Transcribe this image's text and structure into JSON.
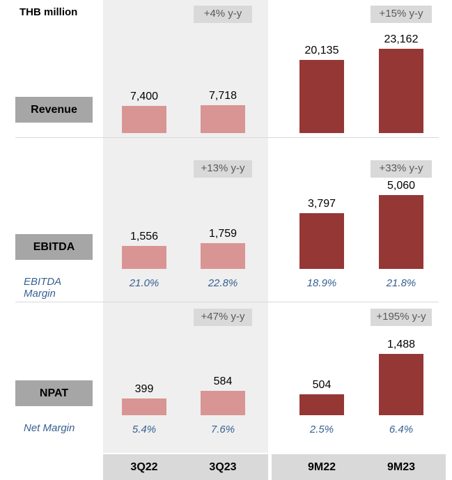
{
  "chart_data": {
    "type": "bar",
    "title": "THB million",
    "categories": [
      "3Q22",
      "3Q23",
      "9M22",
      "9M23"
    ],
    "colors": [
      "#d99594",
      "#d99594",
      "#953735",
      "#953735"
    ],
    "panels": [
      {
        "name": "Revenue",
        "values": [
          7400,
          7718,
          20135,
          23162
        ],
        "value_labels": [
          "7,400",
          "7,718",
          "20,135",
          "23,162"
        ],
        "growth": [
          "+4% y-y",
          "+15% y-y"
        ]
      },
      {
        "name": "EBITDA",
        "values": [
          1556,
          1759,
          3797,
          5060
        ],
        "value_labels": [
          "1,556",
          "1,759",
          "3,797",
          "5,060"
        ],
        "growth": [
          "+13% y-y",
          "+33% y-y"
        ],
        "margin_label": "EBITDA Margin",
        "margins": [
          "21.0%",
          "22.8%",
          "18.9%",
          "21.8%"
        ]
      },
      {
        "name": "NPAT",
        "values": [
          399,
          584,
          504,
          1488
        ],
        "value_labels": [
          "399",
          "584",
          "504",
          "1,488"
        ],
        "growth": [
          "+47% y-y",
          "+195% y-y"
        ],
        "margin_label": "Net Margin",
        "margins": [
          "5.4%",
          "7.6%",
          "2.5%",
          "6.4%"
        ]
      }
    ]
  }
}
